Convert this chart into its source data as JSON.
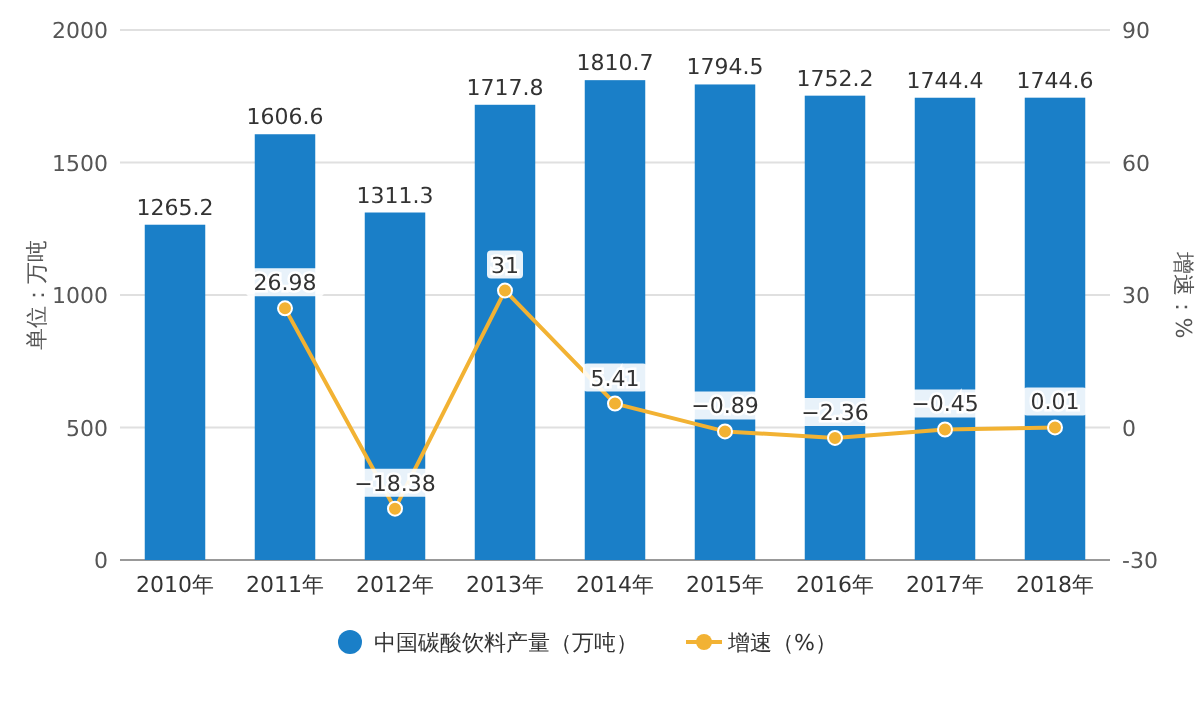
{
  "chart_data": {
    "type": "bar",
    "categories": [
      "2010年",
      "2011年",
      "2012年",
      "2013年",
      "2014年",
      "2015年",
      "2016年",
      "2017年",
      "2018年"
    ],
    "series": [
      {
        "name": "中国碳酸饮料产量（万吨）",
        "color": "#1a7fc8",
        "values": [
          1265.2,
          1606.6,
          1311.3,
          1717.8,
          1810.7,
          1794.5,
          1752.2,
          1744.4,
          1744.6
        ]
      },
      {
        "name": "增速（%）",
        "type": "line",
        "axis": "y2",
        "color": "#f2b233",
        "marker": "circle",
        "values": [
          null,
          26.98,
          -18.38,
          31,
          5.41,
          -0.89,
          -2.36,
          -0.45,
          0.01
        ]
      }
    ],
    "ylabel": "单位：万吨",
    "y2label": "增速：%",
    "ylim": [
      0,
      2000
    ],
    "yticks": [
      0,
      500,
      1000,
      1500,
      2000
    ],
    "y2lim": [
      -30,
      90
    ],
    "y2ticks": [
      -30,
      0,
      30,
      60,
      90
    ],
    "grid": "y",
    "legend": "bottom",
    "data_labels": true
  }
}
